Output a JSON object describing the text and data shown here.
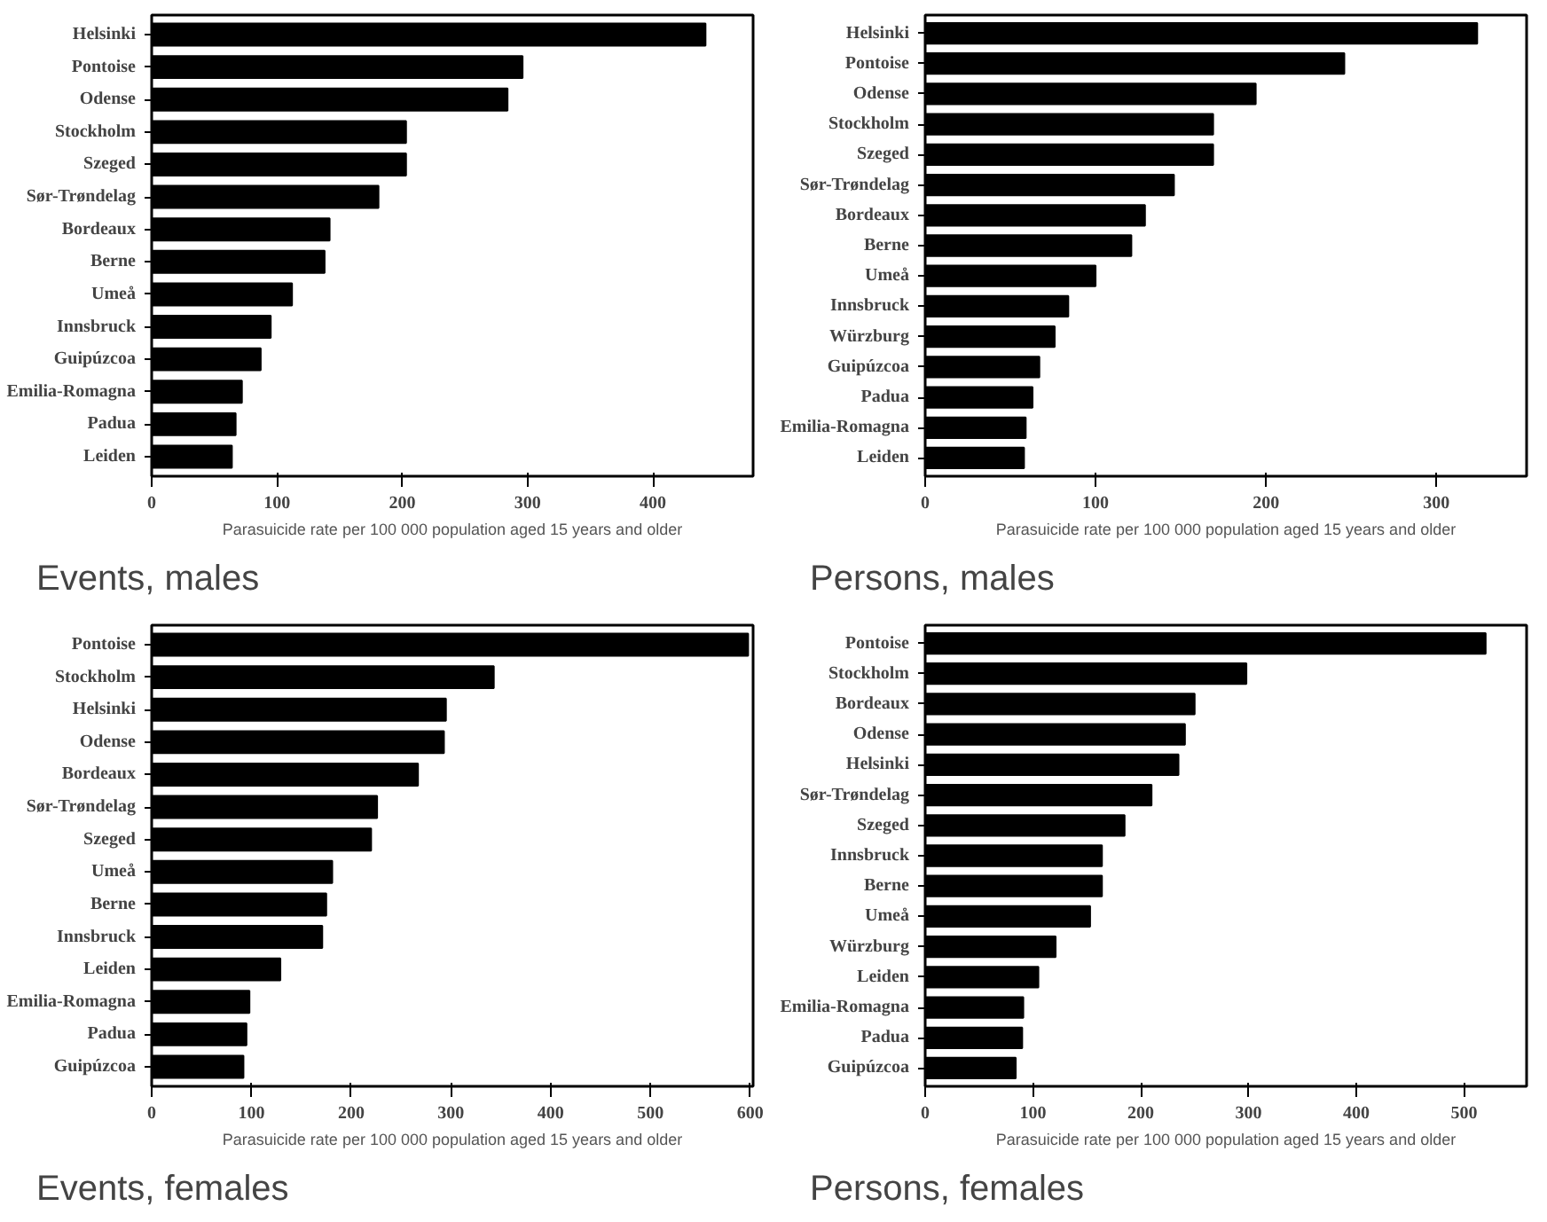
{
  "chart_data": [
    {
      "type": "bar",
      "orientation": "horizontal",
      "title": "Events, males",
      "xlabel": "Parasuicide rate per 100 000 population aged 15 years and older",
      "color": "#000000",
      "xlim": [
        0,
        480
      ],
      "xticks": [
        0,
        100,
        200,
        300,
        400
      ],
      "grid": false,
      "legend": false,
      "categories": [
        "Helsinki",
        "Pontoise",
        "Odense",
        "Stockholm",
        "Szeged",
        "Sør-Trøndelag",
        "Bordeaux",
        "Berne",
        "Umeå",
        "Innsbruck",
        "Guipúzcoa",
        "Emilia-Romagna",
        "Padua",
        "Leiden"
      ],
      "values": [
        442,
        296,
        284,
        203,
        203,
        181,
        142,
        138,
        112,
        95,
        87,
        72,
        67,
        64
      ]
    },
    {
      "type": "bar",
      "orientation": "horizontal",
      "title": "Persons, males",
      "xlabel": "Parasuicide rate per 100 000 population aged 15 years and older",
      "color": "#000000",
      "xlim": [
        0,
        353
      ],
      "xticks": [
        0,
        100,
        200,
        300
      ],
      "grid": false,
      "legend": false,
      "categories": [
        "Helsinki",
        "Pontoise",
        "Odense",
        "Stockholm",
        "Szeged",
        "Sør-Trøndelag",
        "Bordeaux",
        "Berne",
        "Umeå",
        "Innsbruck",
        "Würzburg",
        "Guipúzcoa",
        "Padua",
        "Emilia-Romagna",
        "Leiden"
      ],
      "values": [
        324,
        246,
        194,
        169,
        169,
        146,
        129,
        121,
        100,
        84,
        76,
        67,
        63,
        59,
        58
      ]
    },
    {
      "type": "bar",
      "orientation": "horizontal",
      "title": "Events, females",
      "xlabel": "Parasuicide rate per 100 000 population aged 15 years and older",
      "color": "#000000",
      "xlim": [
        0,
        603
      ],
      "xticks": [
        0,
        100,
        200,
        300,
        400,
        500,
        600
      ],
      "grid": false,
      "legend": false,
      "categories": [
        "Pontoise",
        "Stockholm",
        "Helsinki",
        "Odense",
        "Bordeaux",
        "Sør-Trøndelag",
        "Szeged",
        "Umeå",
        "Berne",
        "Innsbruck",
        "Leiden",
        "Emilia-Romagna",
        "Padua",
        "Guipúzcoa"
      ],
      "values": [
        598,
        343,
        295,
        293,
        267,
        226,
        220,
        181,
        175,
        171,
        129,
        98,
        95,
        92
      ]
    },
    {
      "type": "bar",
      "orientation": "horizontal",
      "title": "Persons, females",
      "xlabel": "Parasuicide rate per 100 000 population aged 15 years and older",
      "color": "#000000",
      "xlim": [
        0,
        558
      ],
      "xticks": [
        0,
        100,
        200,
        300,
        400,
        500
      ],
      "grid": false,
      "legend": false,
      "categories": [
        "Pontoise",
        "Stockholm",
        "Bordeaux",
        "Odense",
        "Helsinki",
        "Sør-Trøndelag",
        "Szeged",
        "Innsbruck",
        "Berne",
        "Umeå",
        "Würzburg",
        "Leiden",
        "Emilia-Romagna",
        "Padua",
        "Guipúzcoa"
      ],
      "values": [
        520,
        298,
        250,
        241,
        235,
        210,
        185,
        164,
        164,
        153,
        121,
        105,
        91,
        90,
        84
      ]
    }
  ]
}
